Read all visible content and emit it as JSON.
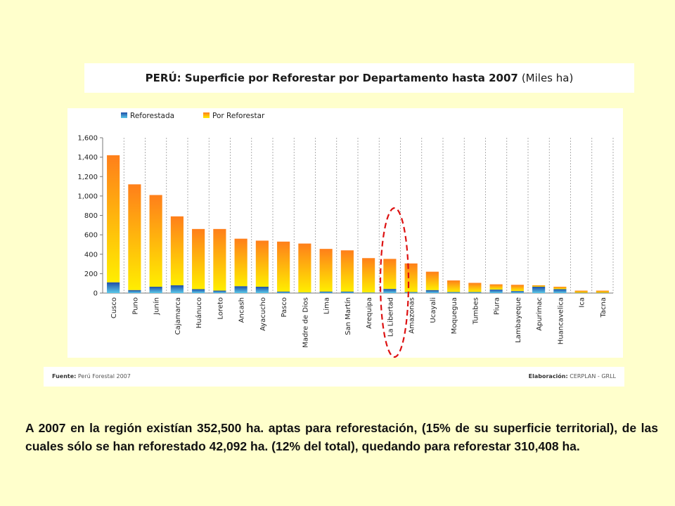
{
  "title": {
    "main": "PERÚ: Superficie por Reforestar por Departamento hasta 2007",
    "unit": "(Miles ha)"
  },
  "footer": {
    "source_label": "Fuente:",
    "source_value": "Perú Forestal 2007",
    "made_by_label": "Elaboración:",
    "made_by_value": "CERPLAN - GRLL"
  },
  "summary_text": "A 2007 en la región existían 352,500 ha. aptas para reforestación, (15% de su superficie territorial), de las cuales sólo se han reforestado 42,092 ha. (12% del total), quedando para reforestar 310,408 ha.",
  "colors": {
    "reforestada_top": "#1f4fa8",
    "reforestada_bottom": "#5ac8e8",
    "por_reforestar_top": "#ff7f1a",
    "por_reforestar_bottom": "#ffee00",
    "highlight": "#dd1111"
  },
  "chart_data": {
    "type": "bar",
    "stacked": true,
    "categories": [
      "Cusco",
      "Puno",
      "Junín",
      "Cajamarca",
      "Huánuco",
      "Loreto",
      "Ancash",
      "Ayacucho",
      "Pasco",
      "Madre de Dios",
      "Lima",
      "San Martín",
      "Arequipa",
      "La Libertad",
      "Amazonas",
      "Ucayali",
      "Moquegua",
      "Tumbes",
      "Piura",
      "Lambayeque",
      "Apurimac",
      "Huancavelica",
      "Ica",
      "Tacna"
    ],
    "series": [
      {
        "name": "Reforestada",
        "values": [
          110,
          30,
          65,
          80,
          40,
          25,
          70,
          65,
          15,
          5,
          15,
          15,
          5,
          42,
          10,
          30,
          10,
          10,
          35,
          20,
          65,
          40,
          2,
          2
        ]
      },
      {
        "name": "Por Reforestar",
        "values": [
          1310,
          1090,
          945,
          710,
          620,
          635,
          490,
          475,
          515,
          505,
          440,
          425,
          355,
          310,
          295,
          190,
          120,
          95,
          55,
          65,
          15,
          25,
          23,
          23
        ]
      }
    ],
    "ylim": [
      0,
      1600
    ],
    "yticks": [
      "0",
      "200",
      "400",
      "600",
      "800",
      "1,000",
      "1,200",
      "1,400",
      "1,600"
    ],
    "legend_position": "top",
    "highlighted_category": "La Libertad"
  }
}
